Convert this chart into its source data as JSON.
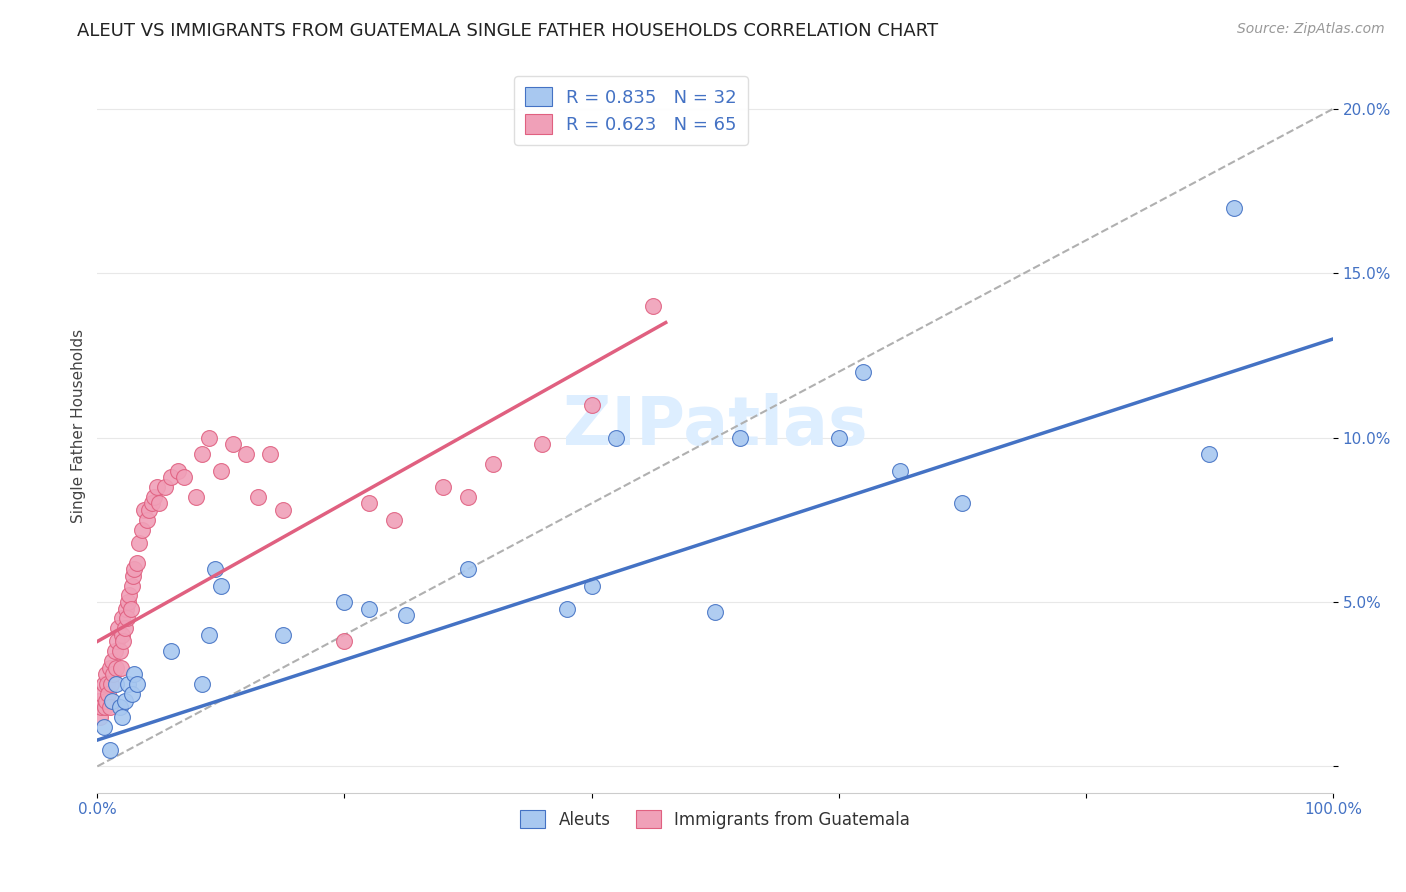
{
  "title": "ALEUT VS IMMIGRANTS FROM GUATEMALA SINGLE FATHER HOUSEHOLDS CORRELATION CHART",
  "source": "Source: ZipAtlas.com",
  "ylabel": "Single Father Households",
  "xlim": [
    0,
    1.0
  ],
  "ylim": [
    -0.008,
    0.215
  ],
  "xticks": [
    0.0,
    0.2,
    0.4,
    0.6,
    0.8,
    1.0
  ],
  "xticklabels": [
    "0.0%",
    "",
    "",
    "",
    "",
    "100.0%"
  ],
  "yticks": [
    0.0,
    0.05,
    0.1,
    0.15,
    0.2
  ],
  "yticklabels": [
    "",
    "5.0%",
    "10.0%",
    "15.0%",
    "20.0%"
  ],
  "watermark": "ZIPatlas",
  "legend_entries": [
    {
      "label": "Aleuts",
      "color": "#a8c8f0",
      "R": 0.835,
      "N": 32
    },
    {
      "label": "Immigrants from Guatemala",
      "color": "#f0a8b8",
      "R": 0.623,
      "N": 65
    }
  ],
  "blue_scatter_x": [
    0.005,
    0.01,
    0.012,
    0.015,
    0.018,
    0.02,
    0.022,
    0.025,
    0.028,
    0.03,
    0.032,
    0.06,
    0.085,
    0.09,
    0.095,
    0.1,
    0.15,
    0.2,
    0.22,
    0.25,
    0.3,
    0.38,
    0.4,
    0.42,
    0.5,
    0.52,
    0.6,
    0.62,
    0.65,
    0.7,
    0.9,
    0.92
  ],
  "blue_scatter_y": [
    0.012,
    0.005,
    0.02,
    0.025,
    0.018,
    0.015,
    0.02,
    0.025,
    0.022,
    0.028,
    0.025,
    0.035,
    0.025,
    0.04,
    0.06,
    0.055,
    0.04,
    0.05,
    0.048,
    0.046,
    0.06,
    0.048,
    0.055,
    0.1,
    0.047,
    0.1,
    0.1,
    0.12,
    0.09,
    0.08,
    0.095,
    0.17
  ],
  "pink_scatter_x": [
    0.001,
    0.002,
    0.003,
    0.004,
    0.005,
    0.006,
    0.007,
    0.007,
    0.008,
    0.009,
    0.01,
    0.01,
    0.011,
    0.012,
    0.013,
    0.014,
    0.015,
    0.016,
    0.017,
    0.018,
    0.019,
    0.02,
    0.02,
    0.021,
    0.022,
    0.023,
    0.024,
    0.025,
    0.026,
    0.027,
    0.028,
    0.029,
    0.03,
    0.032,
    0.034,
    0.036,
    0.038,
    0.04,
    0.042,
    0.044,
    0.046,
    0.048,
    0.05,
    0.055,
    0.06,
    0.065,
    0.07,
    0.08,
    0.085,
    0.09,
    0.1,
    0.11,
    0.12,
    0.13,
    0.14,
    0.15,
    0.2,
    0.22,
    0.24,
    0.28,
    0.3,
    0.32,
    0.36,
    0.4,
    0.45
  ],
  "pink_scatter_y": [
    0.02,
    0.015,
    0.018,
    0.022,
    0.025,
    0.018,
    0.028,
    0.02,
    0.025,
    0.022,
    0.018,
    0.03,
    0.025,
    0.032,
    0.028,
    0.035,
    0.03,
    0.038,
    0.042,
    0.035,
    0.03,
    0.04,
    0.045,
    0.038,
    0.042,
    0.048,
    0.045,
    0.05,
    0.052,
    0.048,
    0.055,
    0.058,
    0.06,
    0.062,
    0.068,
    0.072,
    0.078,
    0.075,
    0.078,
    0.08,
    0.082,
    0.085,
    0.08,
    0.085,
    0.088,
    0.09,
    0.088,
    0.082,
    0.095,
    0.1,
    0.09,
    0.098,
    0.095,
    0.082,
    0.095,
    0.078,
    0.038,
    0.08,
    0.075,
    0.085,
    0.082,
    0.092,
    0.098,
    0.11,
    0.14
  ],
  "blue_line_x": [
    0.0,
    1.0
  ],
  "blue_line_y": [
    0.008,
    0.13
  ],
  "pink_line_x": [
    0.0,
    0.46
  ],
  "pink_line_y": [
    0.038,
    0.135
  ],
  "diagonal_line_x": [
    0.0,
    1.0
  ],
  "diagonal_line_y": [
    0.0,
    0.2
  ],
  "blue_line_color": "#4472c4",
  "pink_line_color": "#e06080",
  "diagonal_line_color": "#b0b0b0",
  "scatter_blue_color": "#a8c8f0",
  "scatter_pink_color": "#f0a0b8",
  "title_fontsize": 13,
  "source_fontsize": 10,
  "axis_label_fontsize": 11,
  "tick_fontsize": 11,
  "watermark_fontsize": 48,
  "watermark_color": "#ddeeff",
  "background_color": "#ffffff",
  "grid_color": "#e8e8e8"
}
